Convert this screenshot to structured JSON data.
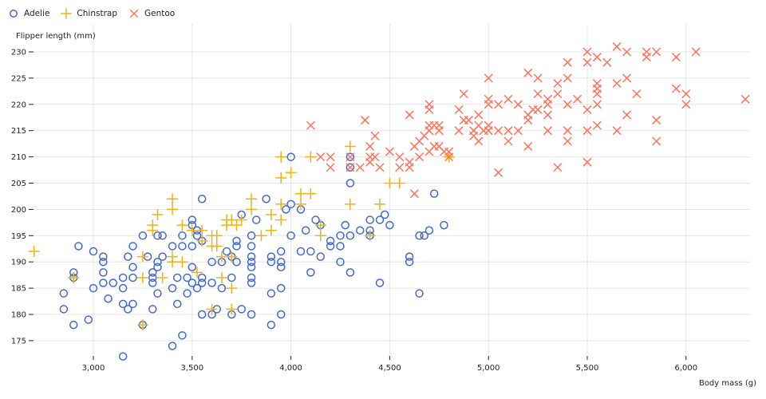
{
  "chart_data": {
    "type": "scatter",
    "xlabel": "Body mass (g)",
    "ylabel": "Flipper length (mm)",
    "xlim": [
      2700,
      6300
    ],
    "ylim": [
      172,
      231
    ],
    "x_ticks": [
      3000,
      3500,
      4000,
      4500,
      5000,
      5500,
      6000
    ],
    "x_tick_labels": [
      "3,000",
      "3,500",
      "4,000",
      "4,500",
      "5,000",
      "5,500",
      "6,000"
    ],
    "y_ticks": [
      175,
      180,
      185,
      190,
      195,
      200,
      205,
      210,
      215,
      220,
      225,
      230
    ],
    "y_tick_labels": [
      "175",
      "180",
      "185",
      "190",
      "195",
      "200",
      "205",
      "210",
      "215",
      "220",
      "225",
      "230"
    ],
    "grid": true,
    "legend_placement": "top-left",
    "series": [
      {
        "name": "Adelie",
        "symbol": "circle",
        "color": "#4269d0",
        "points": [
          [
            2850,
            184
          ],
          [
            2850,
            181
          ],
          [
            2900,
            188
          ],
          [
            2900,
            187
          ],
          [
            2900,
            178
          ],
          [
            2925,
            193
          ],
          [
            2975,
            179
          ],
          [
            3000,
            192
          ],
          [
            3000,
            185
          ],
          [
            3050,
            191
          ],
          [
            3050,
            190
          ],
          [
            3050,
            188
          ],
          [
            3050,
            186
          ],
          [
            3075,
            183
          ],
          [
            3100,
            186
          ],
          [
            3150,
            187
          ],
          [
            3150,
            185
          ],
          [
            3150,
            182
          ],
          [
            3150,
            172
          ],
          [
            3175,
            191
          ],
          [
            3200,
            193
          ],
          [
            3200,
            189
          ],
          [
            3200,
            187
          ],
          [
            3175,
            181
          ],
          [
            3200,
            182
          ],
          [
            3250,
            195
          ],
          [
            3250,
            178
          ],
          [
            3275,
            191
          ],
          [
            3300,
            188
          ],
          [
            3300,
            187
          ],
          [
            3300,
            186
          ],
          [
            3300,
            181
          ],
          [
            3325,
            195
          ],
          [
            3325,
            190
          ],
          [
            3325,
            189
          ],
          [
            3325,
            184
          ],
          [
            3350,
            195
          ],
          [
            3350,
            191
          ],
          [
            3400,
            193
          ],
          [
            3400,
            185
          ],
          [
            3400,
            174
          ],
          [
            3425,
            187
          ],
          [
            3425,
            182
          ],
          [
            3450,
            193
          ],
          [
            3450,
            176
          ],
          [
            3450,
            195
          ],
          [
            3475,
            187
          ],
          [
            3475,
            184
          ],
          [
            3500,
            198
          ],
          [
            3500,
            197
          ],
          [
            3500,
            193
          ],
          [
            3500,
            189
          ],
          [
            3500,
            186
          ],
          [
            3525,
            196
          ],
          [
            3525,
            195
          ],
          [
            3525,
            185
          ],
          [
            3550,
            202
          ],
          [
            3550,
            187
          ],
          [
            3550,
            186
          ],
          [
            3550,
            180
          ],
          [
            3550,
            194
          ],
          [
            3600,
            186
          ],
          [
            3600,
            180
          ],
          [
            3600,
            190
          ],
          [
            3625,
            181
          ],
          [
            3650,
            185
          ],
          [
            3650,
            190
          ],
          [
            3675,
            192
          ],
          [
            3700,
            180
          ],
          [
            3700,
            187
          ],
          [
            3700,
            191
          ],
          [
            3725,
            194
          ],
          [
            3725,
            193
          ],
          [
            3725,
            190
          ],
          [
            3750,
            199
          ],
          [
            3750,
            181
          ],
          [
            3800,
            195
          ],
          [
            3800,
            193
          ],
          [
            3800,
            191
          ],
          [
            3800,
            190
          ],
          [
            3800,
            189
          ],
          [
            3800,
            187
          ],
          [
            3800,
            186
          ],
          [
            3800,
            180
          ],
          [
            3825,
            198
          ],
          [
            3875,
            202
          ],
          [
            3900,
            191
          ],
          [
            3900,
            190
          ],
          [
            3900,
            184
          ],
          [
            3900,
            178
          ],
          [
            3950,
            192
          ],
          [
            3950,
            190
          ],
          [
            3950,
            189
          ],
          [
            3950,
            185
          ],
          [
            3950,
            180
          ],
          [
            3975,
            200
          ],
          [
            4000,
            210
          ],
          [
            4000,
            201
          ],
          [
            4000,
            195
          ],
          [
            4050,
            200
          ],
          [
            4050,
            192
          ],
          [
            4075,
            196
          ],
          [
            4100,
            192
          ],
          [
            4100,
            188
          ],
          [
            4125,
            198
          ],
          [
            4150,
            197
          ],
          [
            4150,
            191
          ],
          [
            4200,
            194
          ],
          [
            4200,
            193
          ],
          [
            4250,
            195
          ],
          [
            4250,
            193
          ],
          [
            4250,
            190
          ],
          [
            4275,
            197
          ],
          [
            4300,
            210
          ],
          [
            4300,
            205
          ],
          [
            4300,
            195
          ],
          [
            4300,
            188
          ],
          [
            4300,
            208
          ],
          [
            4350,
            196
          ],
          [
            4400,
            198
          ],
          [
            4400,
            196
          ],
          [
            4400,
            195
          ],
          [
            4450,
            198
          ],
          [
            4450,
            186
          ],
          [
            4475,
            199
          ],
          [
            4500,
            197
          ],
          [
            4600,
            191
          ],
          [
            4600,
            190
          ],
          [
            4650,
            195
          ],
          [
            4650,
            184
          ],
          [
            4675,
            195
          ],
          [
            4700,
            196
          ],
          [
            4725,
            203
          ],
          [
            4775,
            197
          ]
        ]
      },
      {
        "name": "Chinstrap",
        "symbol": "plus",
        "color": "#efb118",
        "points": [
          [
            2700,
            192
          ],
          [
            2900,
            187
          ],
          [
            3250,
            178
          ],
          [
            3250,
            191
          ],
          [
            3250,
            187
          ],
          [
            3300,
            197
          ],
          [
            3300,
            196
          ],
          [
            3325,
            199
          ],
          [
            3350,
            187
          ],
          [
            3400,
            202
          ],
          [
            3400,
            200
          ],
          [
            3400,
            191
          ],
          [
            3400,
            190
          ],
          [
            3450,
            197
          ],
          [
            3450,
            190
          ],
          [
            3500,
            196
          ],
          [
            3525,
            188
          ],
          [
            3550,
            196
          ],
          [
            3550,
            194
          ],
          [
            3600,
            195
          ],
          [
            3600,
            193
          ],
          [
            3600,
            181
          ],
          [
            3625,
            195
          ],
          [
            3625,
            193
          ],
          [
            3650,
            191
          ],
          [
            3650,
            187
          ],
          [
            3675,
            198
          ],
          [
            3675,
            197
          ],
          [
            3700,
            198
          ],
          [
            3700,
            191
          ],
          [
            3700,
            185
          ],
          [
            3700,
            181
          ],
          [
            3725,
            197
          ],
          [
            3750,
            198
          ],
          [
            3800,
            202
          ],
          [
            3800,
            200
          ],
          [
            3850,
            195
          ],
          [
            3900,
            199
          ],
          [
            3900,
            196
          ],
          [
            3950,
            210
          ],
          [
            3950,
            206
          ],
          [
            3950,
            201
          ],
          [
            3950,
            198
          ],
          [
            4000,
            207
          ],
          [
            4050,
            203
          ],
          [
            4050,
            201
          ],
          [
            4100,
            210
          ],
          [
            4100,
            203
          ],
          [
            4150,
            197
          ],
          [
            4150,
            195
          ],
          [
            4300,
            212
          ],
          [
            4300,
            201
          ],
          [
            4400,
            195
          ],
          [
            4450,
            201
          ],
          [
            4500,
            205
          ],
          [
            4550,
            205
          ],
          [
            4800,
            210
          ]
        ]
      },
      {
        "name": "Gentoo",
        "symbol": "times",
        "color": "#ff725c",
        "points": [
          [
            4100,
            216
          ],
          [
            4150,
            210
          ],
          [
            4200,
            210
          ],
          [
            4200,
            208
          ],
          [
            4300,
            210
          ],
          [
            4300,
            208
          ],
          [
            4350,
            208
          ],
          [
            4375,
            217
          ],
          [
            4400,
            212
          ],
          [
            4400,
            210
          ],
          [
            4400,
            209
          ],
          [
            4425,
            214
          ],
          [
            4425,
            210
          ],
          [
            4450,
            208
          ],
          [
            4500,
            211
          ],
          [
            4550,
            210
          ],
          [
            4550,
            208
          ],
          [
            4600,
            209
          ],
          [
            4600,
            208
          ],
          [
            4600,
            218
          ],
          [
            4625,
            203
          ],
          [
            4625,
            212
          ],
          [
            4650,
            213
          ],
          [
            4650,
            210
          ],
          [
            4675,
            214
          ],
          [
            4700,
            216
          ],
          [
            4700,
            215
          ],
          [
            4700,
            220
          ],
          [
            4700,
            219
          ],
          [
            4700,
            211
          ],
          [
            4725,
            212
          ],
          [
            4725,
            216
          ],
          [
            4750,
            215
          ],
          [
            4750,
            216
          ],
          [
            4750,
            212
          ],
          [
            4775,
            211
          ],
          [
            4800,
            211
          ],
          [
            4800,
            210
          ],
          [
            4850,
            215
          ],
          [
            4850,
            219
          ],
          [
            4875,
            217
          ],
          [
            4875,
            222
          ],
          [
            4900,
            217
          ],
          [
            4925,
            215
          ],
          [
            4925,
            214
          ],
          [
            4950,
            216
          ],
          [
            4950,
            218
          ],
          [
            4950,
            213
          ],
          [
            4975,
            215
          ],
          [
            5000,
            225
          ],
          [
            5000,
            221
          ],
          [
            5000,
            220
          ],
          [
            5000,
            215
          ],
          [
            5000,
            216
          ],
          [
            5050,
            207
          ],
          [
            5050,
            220
          ],
          [
            5050,
            215
          ],
          [
            5100,
            221
          ],
          [
            5100,
            215
          ],
          [
            5100,
            213
          ],
          [
            5150,
            220
          ],
          [
            5150,
            215
          ],
          [
            5200,
            218
          ],
          [
            5200,
            217
          ],
          [
            5200,
            212
          ],
          [
            5200,
            226
          ],
          [
            5225,
            219
          ],
          [
            5250,
            225
          ],
          [
            5250,
            222
          ],
          [
            5250,
            219
          ],
          [
            5300,
            221
          ],
          [
            5300,
            220
          ],
          [
            5300,
            218
          ],
          [
            5300,
            215
          ],
          [
            5350,
            224
          ],
          [
            5350,
            222
          ],
          [
            5350,
            208
          ],
          [
            5400,
            228
          ],
          [
            5400,
            225
          ],
          [
            5400,
            215
          ],
          [
            5400,
            213
          ],
          [
            5400,
            220
          ],
          [
            5450,
            221
          ],
          [
            5500,
            230
          ],
          [
            5500,
            228
          ],
          [
            5500,
            219
          ],
          [
            5500,
            215
          ],
          [
            5500,
            209
          ],
          [
            5550,
            224
          ],
          [
            5550,
            223
          ],
          [
            5550,
            222
          ],
          [
            5550,
            220
          ],
          [
            5550,
            216
          ],
          [
            5550,
            229
          ],
          [
            5600,
            228
          ],
          [
            5650,
            231
          ],
          [
            5650,
            224
          ],
          [
            5650,
            215
          ],
          [
            5700,
            230
          ],
          [
            5700,
            225
          ],
          [
            5700,
            218
          ],
          [
            5750,
            222
          ],
          [
            5800,
            230
          ],
          [
            5800,
            229
          ],
          [
            5850,
            230
          ],
          [
            5850,
            217
          ],
          [
            5850,
            213
          ],
          [
            5950,
            229
          ],
          [
            5950,
            223
          ],
          [
            6000,
            222
          ],
          [
            6000,
            220
          ],
          [
            6050,
            230
          ],
          [
            6300,
            221
          ]
        ]
      }
    ]
  }
}
